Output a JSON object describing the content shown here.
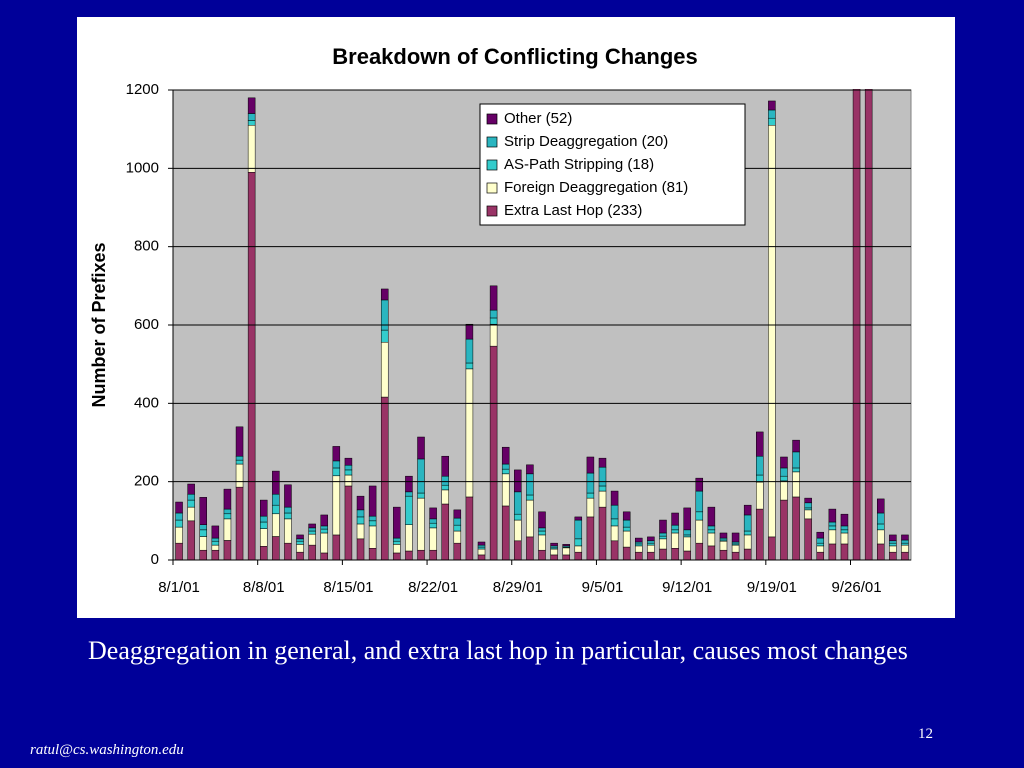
{
  "chart_data": {
    "type": "stacked_bar",
    "title": "Breakdown of Conflicting Changes",
    "y_label": "Number of Prefixes",
    "categories": [
      "8/1/01",
      null,
      null,
      null,
      null,
      null,
      null,
      "8/8/01",
      null,
      null,
      null,
      null,
      null,
      null,
      "8/15/01",
      null,
      null,
      null,
      null,
      null,
      null,
      "8/22/01",
      null,
      null,
      null,
      null,
      null,
      null,
      "8/29/01",
      null,
      null,
      null,
      null,
      null,
      null,
      "9/5/01",
      null,
      null,
      null,
      null,
      null,
      null,
      "9/12/01",
      null,
      null,
      null,
      null,
      null,
      null,
      "9/19/01",
      null,
      null,
      null,
      null,
      null,
      null,
      "9/26/01",
      null,
      null,
      null,
      null
    ],
    "series": [
      {
        "name": "Extra Last Hop (233)",
        "color": "#993366",
        "values": [
          43,
          100,
          25,
          25,
          50,
          186,
          990,
          35,
          60,
          43,
          20,
          38,
          18,
          64,
          189,
          54,
          30,
          416,
          18,
          23,
          25,
          25,
          143,
          43,
          161,
          13,
          546,
          138,
          49,
          59,
          25,
          13,
          13,
          20,
          110,
          135,
          49,
          33,
          20,
          20,
          28,
          30,
          23,
          43,
          36,
          25,
          20,
          28,
          130,
          59,
          153,
          161,
          105,
          20,
          41,
          41,
          1250,
          1250,
          41,
          20,
          20
        ]
      },
      {
        "name": "Foreign Deaggregation (81)",
        "color": "#ffffcc",
        "values": [
          41,
          35,
          35,
          13,
          55,
          59,
          120,
          45,
          58,
          62,
          20,
          28,
          51,
          151,
          28,
          38,
          57,
          140,
          22,
          67,
          133,
          57,
          36,
          31,
          327,
          15,
          56,
          82,
          53,
          94,
          39,
          15,
          18,
          16,
          48,
          41,
          38,
          41,
          16,
          18,
          26,
          39,
          36,
          59,
          33,
          23,
          18,
          36,
          69,
          1051,
          49,
          64,
          23,
          16,
          36,
          28,
          0,
          0,
          36,
          16,
          18
        ]
      },
      {
        "name": "AS-Path Stripping (18)",
        "color": "#33cccc",
        "values": [
          18,
          18,
          17,
          10,
          13,
          10,
          12,
          17,
          22,
          15,
          8,
          8,
          10,
          20,
          13,
          18,
          13,
          31,
          8,
          73,
          13,
          12,
          12,
          15,
          15,
          5,
          16,
          12,
          15,
          13,
          10,
          3,
          2,
          18,
          13,
          13,
          18,
          10,
          5,
          5,
          7,
          8,
          5,
          21,
          8,
          3,
          3,
          10,
          18,
          18,
          12,
          10,
          5,
          7,
          10,
          8,
          0,
          0,
          15,
          7,
          5
        ]
      },
      {
        "name": "Strip Deaggregation (20)",
        "color": "#2ab5c0",
        "values": [
          18,
          15,
          13,
          8,
          12,
          10,
          18,
          15,
          28,
          15,
          6,
          8,
          8,
          18,
          12,
          18,
          12,
          77,
          8,
          11,
          87,
          11,
          23,
          18,
          61,
          5,
          20,
          13,
          57,
          54,
          8,
          5,
          3,
          48,
          51,
          48,
          35,
          18,
          5,
          6,
          8,
          12,
          13,
          53,
          10,
          5,
          5,
          41,
          48,
          21,
          21,
          41,
          13,
          13,
          10,
          10,
          0,
          0,
          28,
          6,
          8
        ]
      },
      {
        "name": "Other (52)",
        "color": "#660066",
        "values": [
          28,
          26,
          70,
          31,
          51,
          75,
          40,
          41,
          59,
          57,
          10,
          10,
          28,
          37,
          18,
          35,
          77,
          28,
          79,
          40,
          56,
          28,
          51,
          21,
          38,
          8,
          62,
          43,
          56,
          23,
          41,
          7,
          4,
          8,
          41,
          23,
          36,
          21,
          10,
          10,
          33,
          31,
          56,
          33,
          48,
          13,
          23,
          25,
          62,
          23,
          28,
          30,
          12,
          15,
          33,
          30,
          0,
          0,
          36,
          15,
          13
        ]
      }
    ],
    "ylim": [
      0,
      1200
    ],
    "yticks": [
      0,
      200,
      400,
      600,
      800,
      1000,
      1200
    ],
    "grid": true
  },
  "caption": "Deaggregation in general, and extra last hop in particular, causes most changes",
  "footer": "ratul@cs.washington.edu",
  "page_number": 12
}
